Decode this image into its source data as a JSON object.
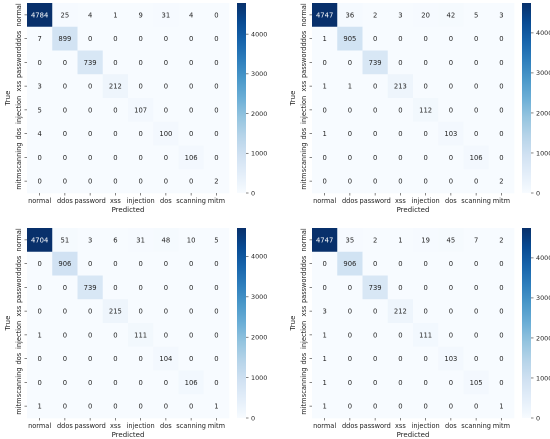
{
  "chart_data": [
    {
      "type": "heatmap",
      "title": "",
      "xlabel": "Predicted",
      "ylabel": "True",
      "x_categories": [
        "normal",
        "ddos",
        "password",
        "xss",
        "injection",
        "dos",
        "scanning",
        "mitm"
      ],
      "y_categories": [
        "normal",
        "ddos",
        "password",
        "xss",
        "injection",
        "dos",
        "scanning",
        "mitm"
      ],
      "values": [
        [
          4784,
          25,
          4,
          1,
          9,
          31,
          4,
          0
        ],
        [
          7,
          899,
          0,
          0,
          0,
          0,
          0,
          0
        ],
        [
          0,
          0,
          739,
          0,
          0,
          0,
          0,
          0
        ],
        [
          3,
          0,
          0,
          212,
          0,
          0,
          0,
          0
        ],
        [
          5,
          0,
          0,
          0,
          107,
          0,
          0,
          0
        ],
        [
          4,
          0,
          0,
          0,
          0,
          100,
          0,
          0
        ],
        [
          0,
          0,
          0,
          0,
          0,
          0,
          106,
          0
        ],
        [
          0,
          0,
          0,
          0,
          0,
          0,
          0,
          2
        ]
      ],
      "colorbar": {
        "ticks": [
          0,
          1000,
          2000,
          3000,
          4000
        ],
        "range": [
          0,
          4784
        ]
      }
    },
    {
      "type": "heatmap",
      "title": "",
      "xlabel": "Predicted",
      "ylabel": "True",
      "x_categories": [
        "normal",
        "ddos",
        "password",
        "xss",
        "injection",
        "dos",
        "scanning",
        "mitm"
      ],
      "y_categories": [
        "normal",
        "ddos",
        "password",
        "xss",
        "injection",
        "dos",
        "scanning",
        "mitm"
      ],
      "values": [
        [
          4747,
          36,
          2,
          3,
          20,
          42,
          5,
          3
        ],
        [
          1,
          905,
          0,
          0,
          0,
          0,
          0,
          0
        ],
        [
          0,
          0,
          739,
          0,
          0,
          0,
          0,
          0
        ],
        [
          1,
          1,
          0,
          213,
          0,
          0,
          0,
          0
        ],
        [
          0,
          0,
          0,
          0,
          112,
          0,
          0,
          0
        ],
        [
          1,
          0,
          0,
          0,
          0,
          103,
          0,
          0
        ],
        [
          0,
          0,
          0,
          0,
          0,
          0,
          106,
          0
        ],
        [
          0,
          0,
          0,
          0,
          0,
          0,
          0,
          2
        ]
      ],
      "colorbar": {
        "ticks": [
          0,
          1000,
          2000,
          3000,
          4000
        ],
        "range": [
          0,
          4747
        ]
      }
    },
    {
      "type": "heatmap",
      "title": "",
      "xlabel": "Predicted",
      "ylabel": "True",
      "x_categories": [
        "normal",
        "ddos",
        "password",
        "xss",
        "injection",
        "dos",
        "scanning",
        "mitm"
      ],
      "y_categories": [
        "normal",
        "ddos",
        "password",
        "xss",
        "injection",
        "dos",
        "scanning",
        "mitm"
      ],
      "values": [
        [
          4704,
          51,
          3,
          6,
          31,
          48,
          10,
          5
        ],
        [
          0,
          906,
          0,
          0,
          0,
          0,
          0,
          0
        ],
        [
          0,
          0,
          739,
          0,
          0,
          0,
          0,
          0
        ],
        [
          0,
          0,
          0,
          215,
          0,
          0,
          0,
          0
        ],
        [
          1,
          0,
          0,
          0,
          111,
          0,
          0,
          0
        ],
        [
          0,
          0,
          0,
          0,
          0,
          104,
          0,
          0
        ],
        [
          0,
          0,
          0,
          0,
          0,
          0,
          106,
          0
        ],
        [
          1,
          0,
          0,
          0,
          0,
          0,
          0,
          1
        ]
      ],
      "colorbar": {
        "ticks": [
          0,
          1000,
          2000,
          3000,
          4000
        ],
        "range": [
          0,
          4704
        ]
      }
    },
    {
      "type": "heatmap",
      "title": "",
      "xlabel": "Predicted",
      "ylabel": "True",
      "x_categories": [
        "normal",
        "ddos",
        "password",
        "xss",
        "injection",
        "dos",
        "scanning",
        "mitm"
      ],
      "y_categories": [
        "normal",
        "ddos",
        "password",
        "xss",
        "injection",
        "dos",
        "scanning",
        "mitm"
      ],
      "values": [
        [
          4747,
          35,
          2,
          1,
          19,
          45,
          7,
          2
        ],
        [
          0,
          906,
          0,
          0,
          0,
          0,
          0,
          0
        ],
        [
          0,
          0,
          739,
          0,
          0,
          0,
          0,
          0
        ],
        [
          3,
          0,
          0,
          212,
          0,
          0,
          0,
          0
        ],
        [
          1,
          0,
          0,
          0,
          111,
          0,
          0,
          0
        ],
        [
          1,
          0,
          0,
          0,
          0,
          103,
          0,
          0
        ],
        [
          1,
          0,
          0,
          0,
          0,
          0,
          105,
          0
        ],
        [
          1,
          0,
          0,
          0,
          0,
          0,
          0,
          1
        ]
      ],
      "colorbar": {
        "ticks": [
          0,
          1000,
          2000,
          3000,
          4000
        ],
        "range": [
          0,
          4747
        ]
      }
    }
  ],
  "colors": {
    "cmap_low": "#f7fbff",
    "cmap_mid": "#6baed6",
    "cmap_high": "#08306b",
    "text_dark": "#262626",
    "text_light": "#ffffff"
  }
}
